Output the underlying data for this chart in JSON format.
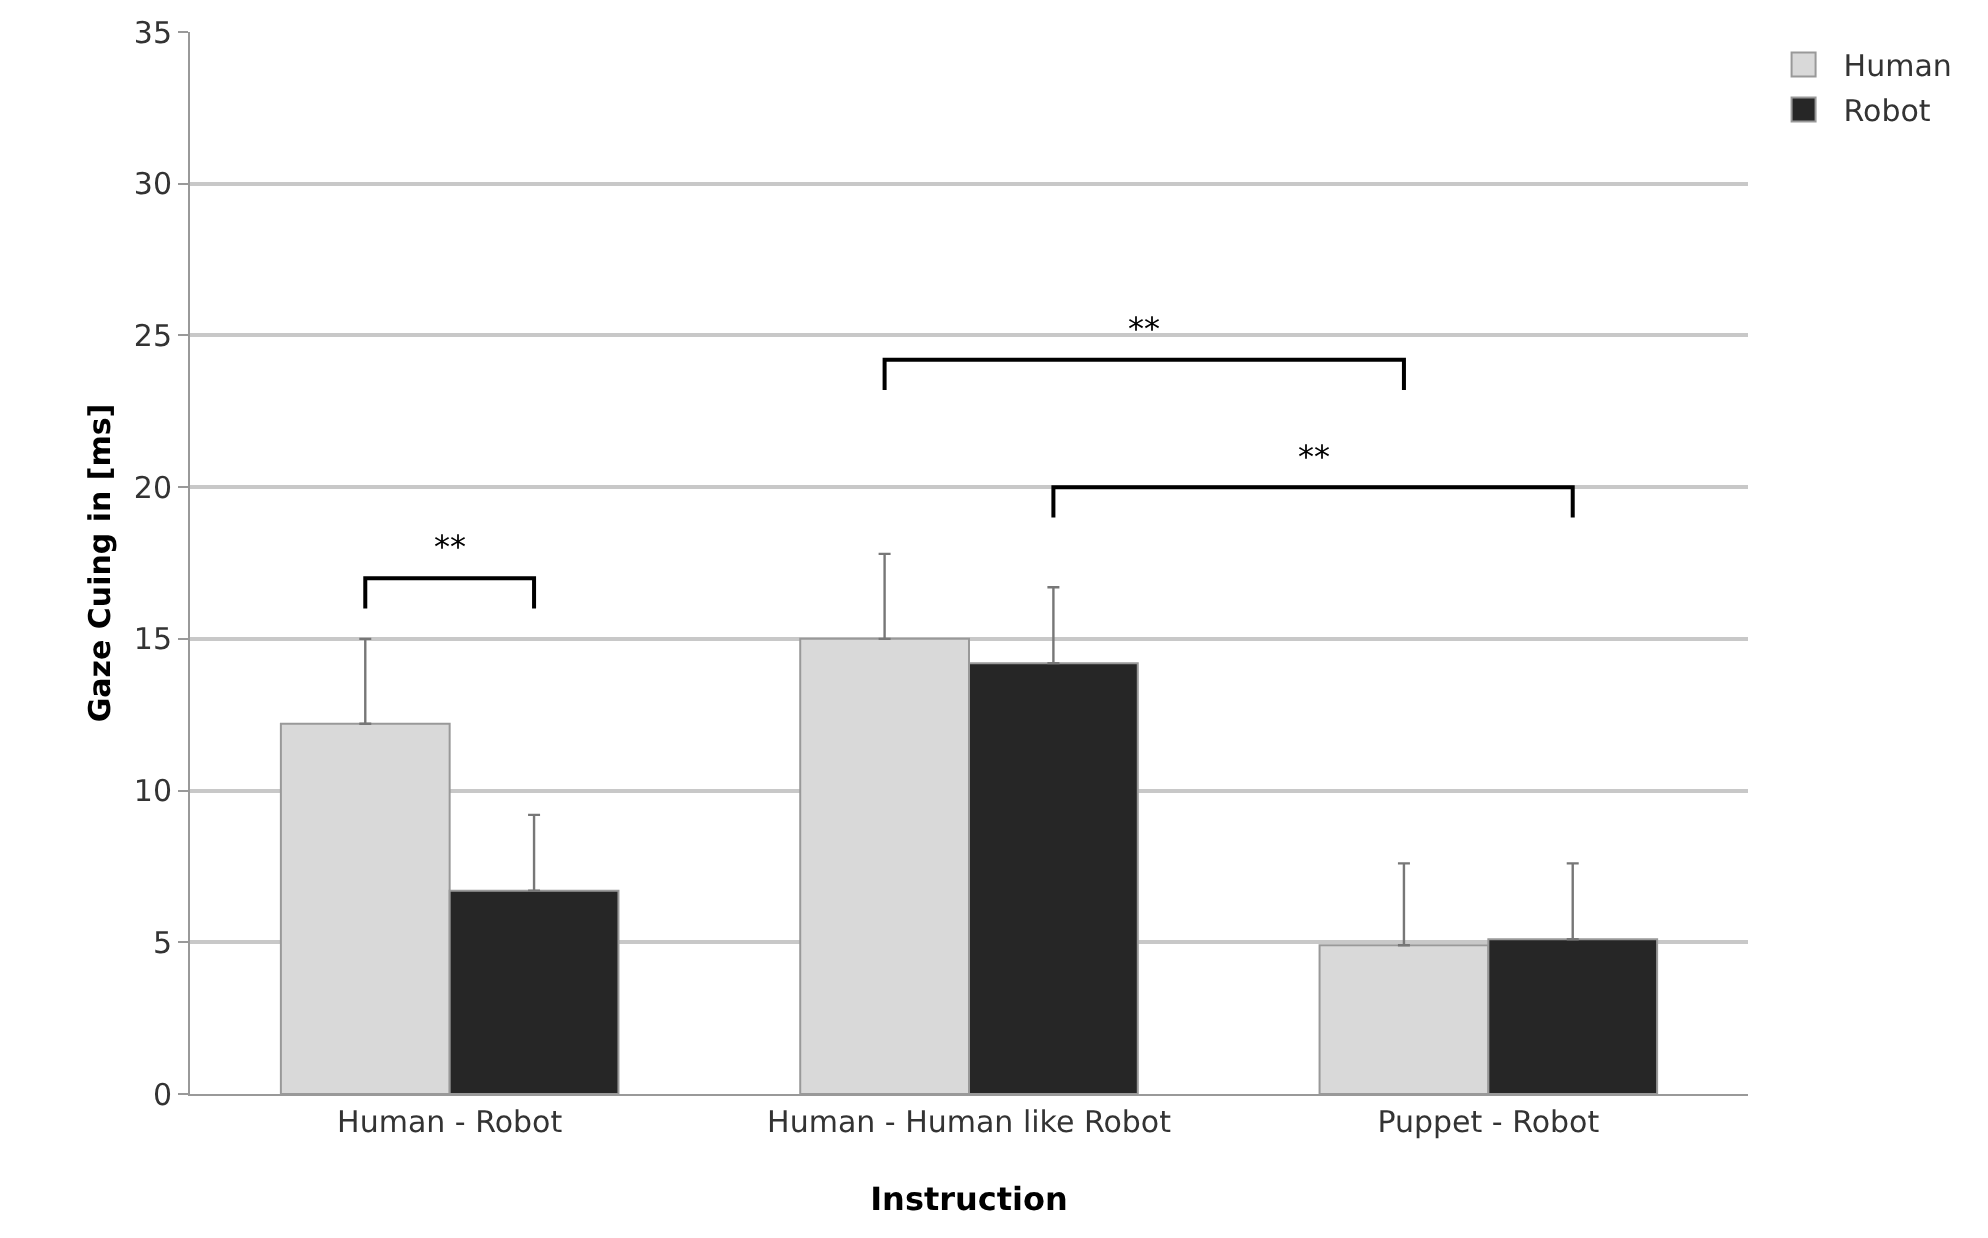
{
  "chart_data": {
    "type": "bar",
    "xlabel": "Instruction",
    "ylabel": "Gaze Cuing in [ms]",
    "categories": [
      "Human - Robot",
      "Human - Human like Robot",
      "Puppet - Robot"
    ],
    "series": [
      {
        "name": "Human",
        "color": "#d9d9d9",
        "values": [
          12.2,
          15.0,
          4.9
        ],
        "errors": [
          [
            12.2,
            15.0
          ],
          [
            15.0,
            17.8
          ],
          [
            4.9,
            7.6
          ]
        ]
      },
      {
        "name": "Robot",
        "color": "#262626",
        "values": [
          6.7,
          14.2,
          5.1
        ],
        "errors": [
          [
            6.7,
            9.2
          ],
          [
            14.2,
            16.7
          ],
          [
            5.1,
            7.6
          ]
        ]
      }
    ],
    "ylim": [
      0,
      35
    ],
    "yticks": [
      0,
      5,
      10,
      15,
      20,
      25,
      30,
      35
    ],
    "grid": "y",
    "legend": "top right",
    "annotations": [
      "**",
      "**",
      "**"
    ]
  }
}
